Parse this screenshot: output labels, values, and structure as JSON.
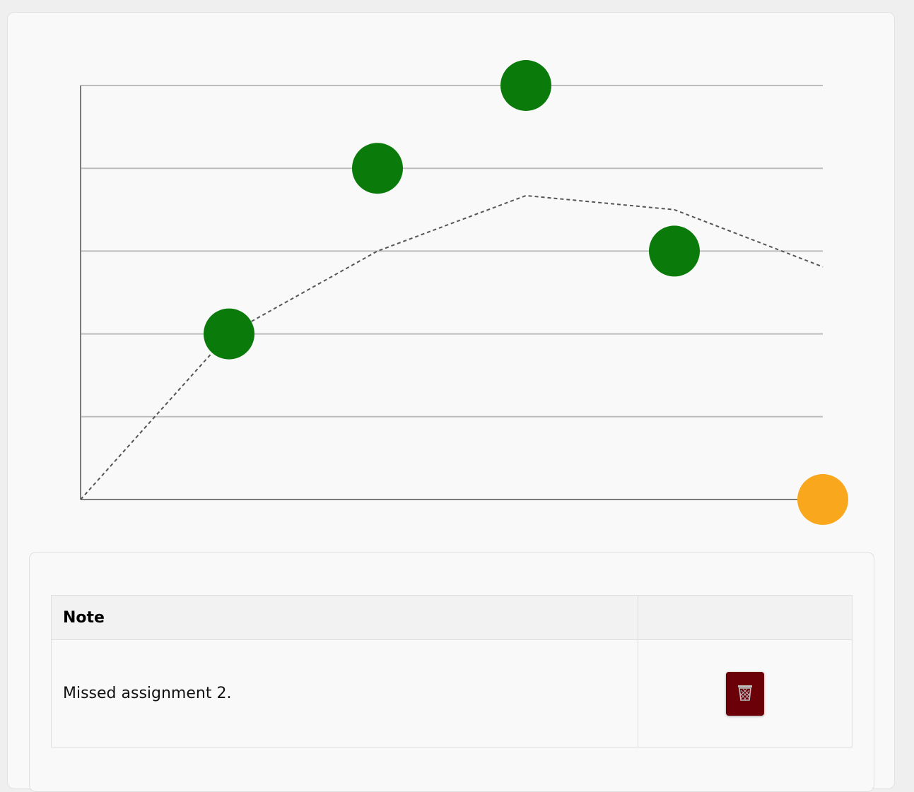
{
  "chart_data": {
    "type": "scatter",
    "x": [
      0,
      1,
      2,
      3,
      4,
      5
    ],
    "ylim": [
      0,
      5
    ],
    "grid": true,
    "series": [
      {
        "values": [
          null,
          2,
          4,
          5,
          3,
          0
        ],
        "point_colors": [
          "",
          "#0a7b0a",
          "#0a7b0a",
          "#0a7b0a",
          "#0a7b0a",
          "#f9a81e"
        ]
      },
      {
        "style": "dashed-line",
        "color": "#555555",
        "values": [
          0,
          2,
          3,
          3.67,
          3.5,
          2.81
        ]
      }
    ]
  },
  "notes_table": {
    "header_note": "Note",
    "rows": [
      {
        "note": "Missed assignment 2.",
        "action_icon": "trash-icon"
      }
    ]
  },
  "colors": {
    "delete_button": "#6b0009",
    "met_point": "#0a7b0a",
    "flagged_point": "#f9a81e"
  }
}
